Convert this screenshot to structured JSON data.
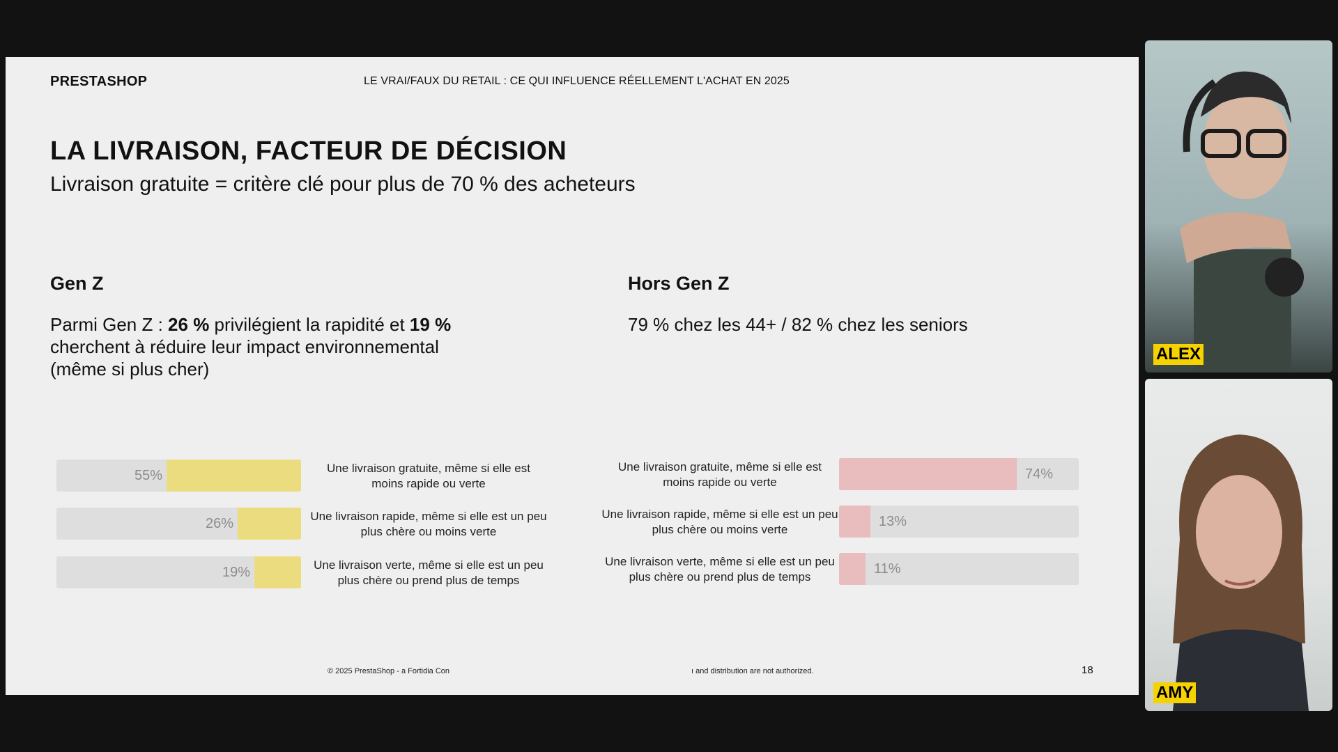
{
  "slide": {
    "brand": "PRESTASHOP",
    "header_title": "LE VRAI/FAUX DU RETAIL : CE QUI INFLUENCE RÉELLEMENT L'ACHAT EN 2025",
    "title": "LA LIVRAISON, FACTEUR DE DÉCISION",
    "subtitle": "Livraison gratuite = critère clé pour plus de 70 % des acheteurs",
    "left": {
      "heading": "Gen Z",
      "text_parts": [
        "Parmi Gen Z : ",
        "26 %",
        " privilégient la rapidité et ",
        "19 %",
        " cherchent à réduire leur impact environnemental (même si plus cher)"
      ]
    },
    "right": {
      "heading": "Hors Gen Z",
      "text": "79 % chez les 44+ / 82 % chez les seniors"
    },
    "footer_left": "© 2025 PrestaShop - a Fortidia Con",
    "footer_right": "ı and distribution are not authorized.",
    "page_number": "18"
  },
  "chart_data": [
    {
      "type": "bar",
      "orientation": "horizontal",
      "categories": [
        "Une livraison gratuite, même si elle est moins rapide ou verte",
        "Une livraison rapide, même si elle est un peu plus chère ou moins verte",
        "Une livraison verte, même si elle est un peu plus chère ou prend plus de temps"
      ],
      "value_labels": [
        "55%",
        "26%",
        "19%"
      ],
      "values": [
        55,
        26,
        19
      ],
      "color": "#ebdc80",
      "ylim": [
        0,
        100
      ]
    },
    {
      "type": "bar",
      "orientation": "horizontal",
      "categories": [
        "Une livraison gratuite, même si elle est moins rapide ou verte",
        "Une livraison rapide, même si elle est un peu plus chère ou moins verte",
        "Une livraison verte, même si elle est un peu plus chère ou prend plus de temps"
      ],
      "value_labels": [
        "74%",
        "13%",
        "11%"
      ],
      "values": [
        74,
        13,
        11
      ],
      "color": "#e9bcbd",
      "ylim": [
        0,
        100
      ]
    }
  ],
  "participants": [
    {
      "name": "ALEX"
    },
    {
      "name": "AMY"
    }
  ]
}
